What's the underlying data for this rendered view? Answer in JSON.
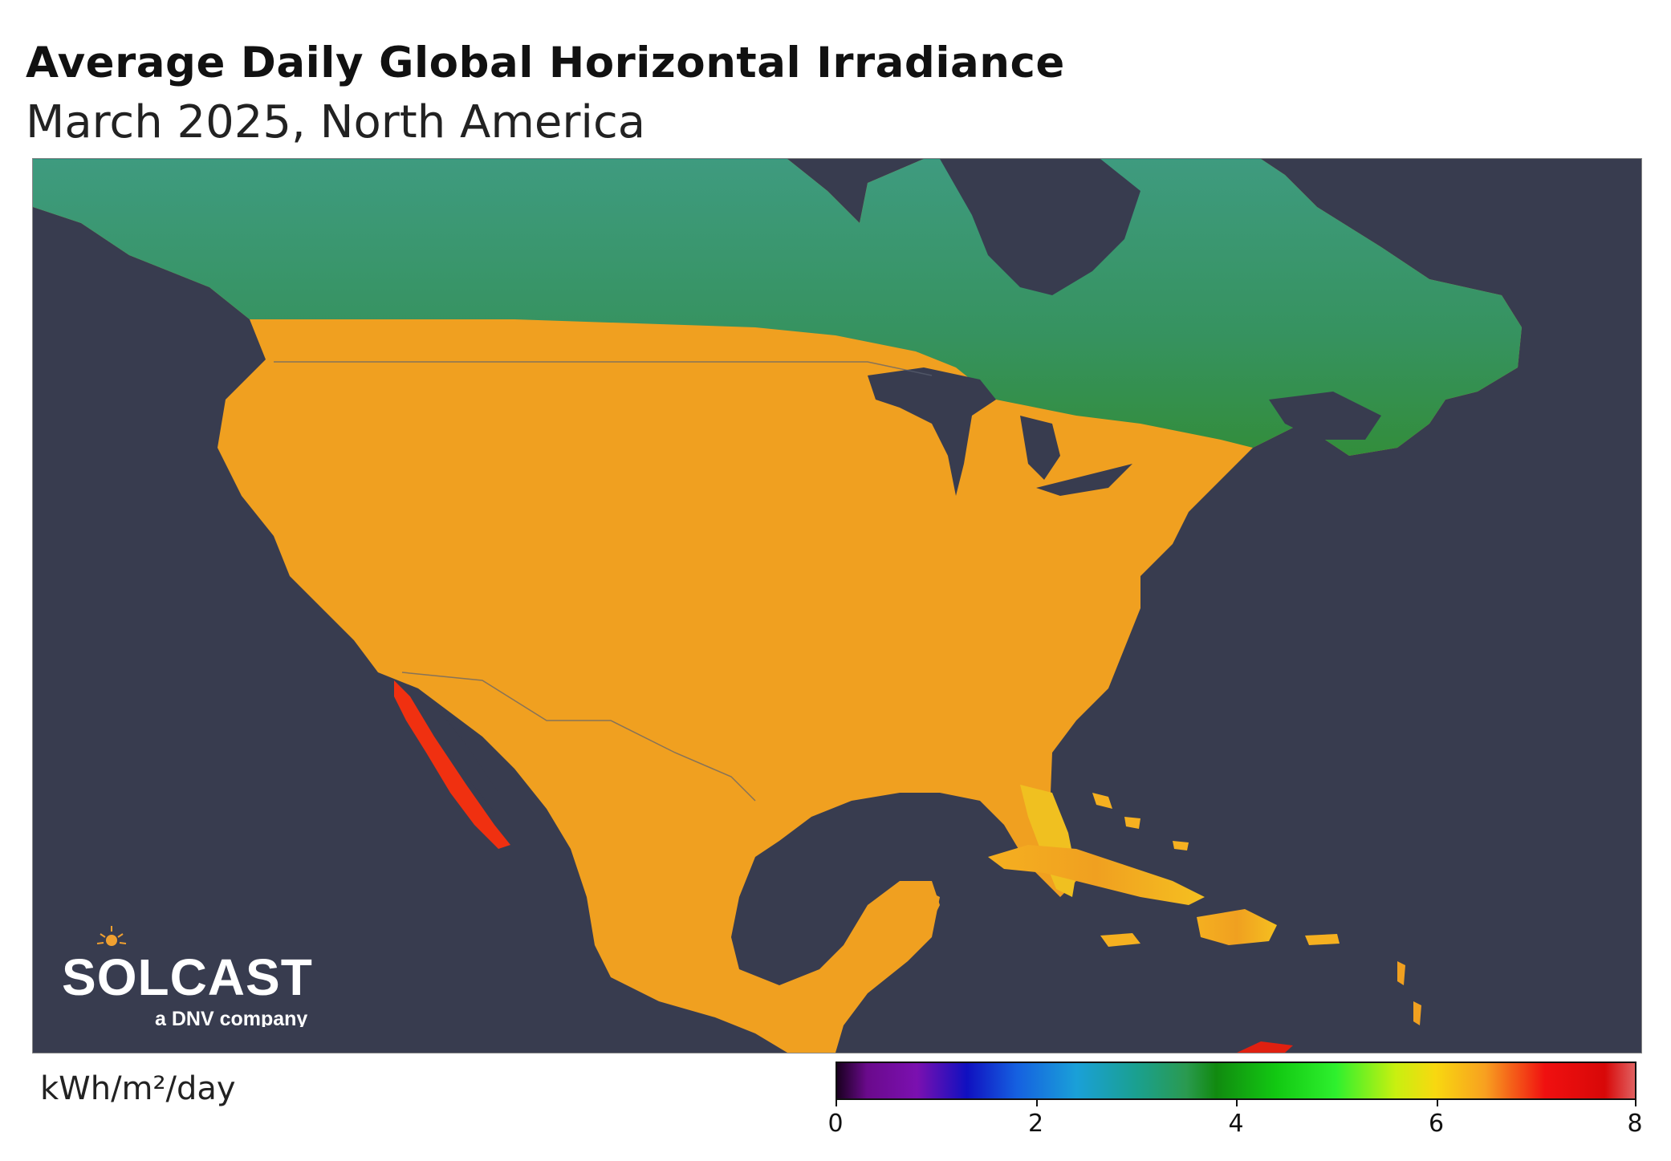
{
  "header": {
    "title": "Average Daily Global Horizontal Irradiance",
    "subtitle": "March 2025, North America"
  },
  "logo": {
    "brand": "SOLCAST",
    "tagline": "a DNV company"
  },
  "legend": {
    "unit": "kWh/m²/day",
    "min": 0,
    "max": 8,
    "ticks": [
      "0",
      "2",
      "4",
      "6",
      "8"
    ],
    "color_stops": [
      {
        "value": 0.0,
        "color": "#1a0020"
      },
      {
        "value": 0.3,
        "color": "#6a0a8c"
      },
      {
        "value": 0.8,
        "color": "#7b10b0"
      },
      {
        "value": 1.3,
        "color": "#1010c0"
      },
      {
        "value": 1.8,
        "color": "#1560e0"
      },
      {
        "value": 2.4,
        "color": "#1aa0d8"
      },
      {
        "value": 3.0,
        "color": "#1aa090"
      },
      {
        "value": 3.5,
        "color": "#2a9a50"
      },
      {
        "value": 3.8,
        "color": "#118a10"
      },
      {
        "value": 4.4,
        "color": "#12c812"
      },
      {
        "value": 5.0,
        "color": "#2ef02e"
      },
      {
        "value": 5.6,
        "color": "#c8f010"
      },
      {
        "value": 6.0,
        "color": "#f8d810"
      },
      {
        "value": 6.5,
        "color": "#f8a020"
      },
      {
        "value": 7.1,
        "color": "#f01010"
      },
      {
        "value": 7.7,
        "color": "#d80808"
      },
      {
        "value": 8.0,
        "color": "#e06060"
      }
    ]
  },
  "map": {
    "background_color": "#383c4f",
    "region": "North America"
  }
}
